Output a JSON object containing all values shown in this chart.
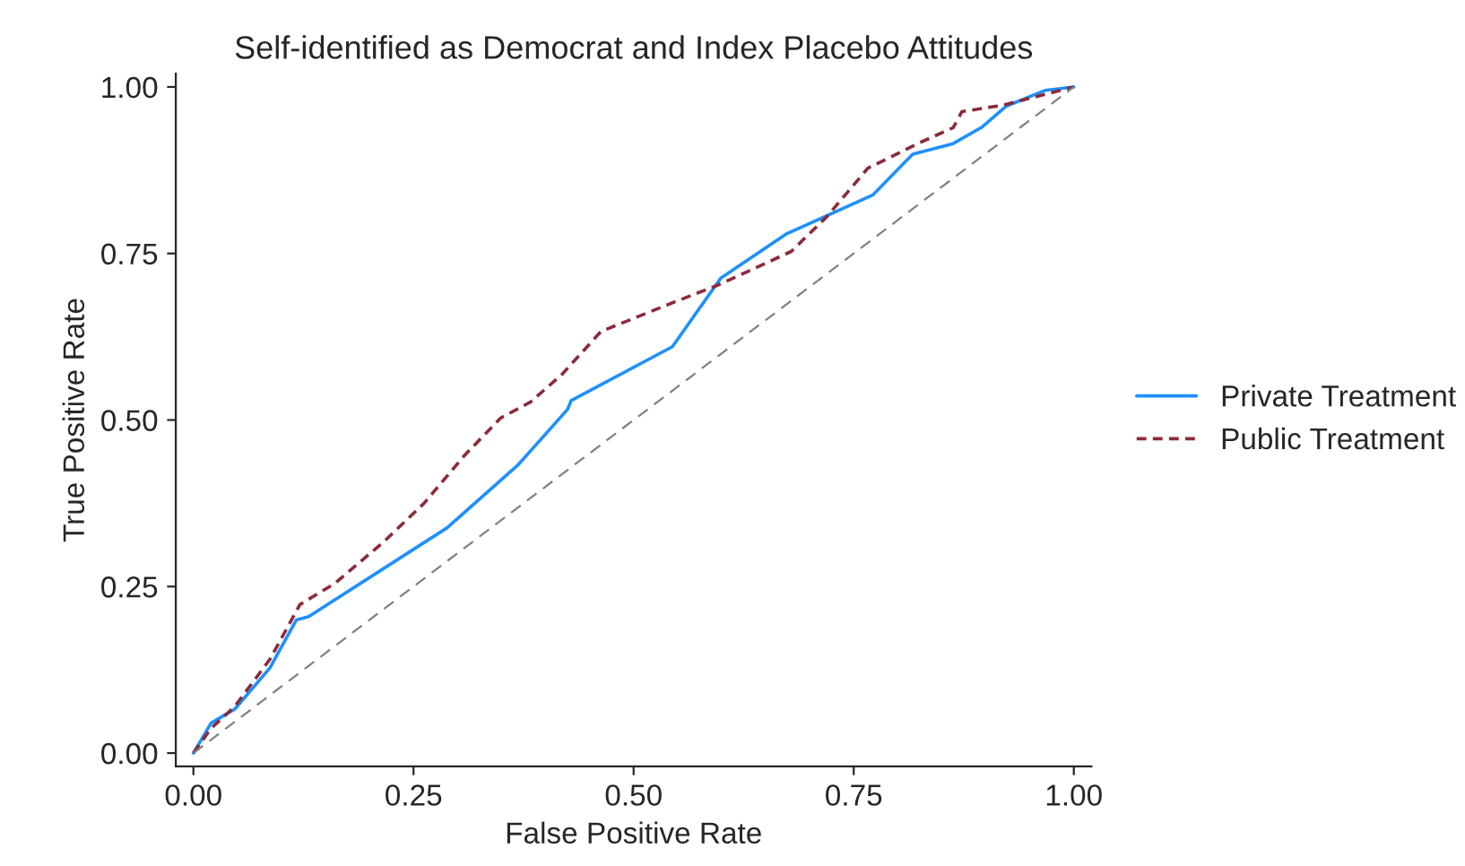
{
  "chart_data": {
    "type": "line",
    "title": "Self-identified as Democrat and Index Placebo Attitudes",
    "xlabel": "False Positive Rate",
    "ylabel": "True Positive Rate",
    "xlim": [
      -0.02,
      1.02
    ],
    "ylim": [
      -0.02,
      1.02
    ],
    "xticks": [
      {
        "value": 0,
        "label": "0.00"
      },
      {
        "value": 0.25,
        "label": "0.25"
      },
      {
        "value": 0.5,
        "label": "0.50"
      },
      {
        "value": 0.75,
        "label": "0.75"
      },
      {
        "value": 1,
        "label": "1.00"
      }
    ],
    "yticks": [
      {
        "value": 0,
        "label": "0.00"
      },
      {
        "value": 0.25,
        "label": "0.25"
      },
      {
        "value": 0.5,
        "label": "0.50"
      },
      {
        "value": 0.75,
        "label": "0.75"
      },
      {
        "value": 1,
        "label": "1.00"
      }
    ],
    "grid": false,
    "legend": "right",
    "marker": "none",
    "series": [
      {
        "name": "Private Treatment",
        "color": "#1e90ff",
        "line_style": "solid",
        "x": [
          0,
          0.02,
          0.047,
          0.087,
          0.117,
          0.131,
          0.288,
          0.369,
          0.425,
          0.429,
          0.544,
          0.599,
          0.673,
          0.772,
          0.817,
          0.863,
          0.895,
          0.923,
          0.968,
          1.0
        ],
        "values": [
          0,
          0.045,
          0.066,
          0.128,
          0.2,
          0.205,
          0.338,
          0.433,
          0.516,
          0.529,
          0.61,
          0.713,
          0.779,
          0.838,
          0.899,
          0.915,
          0.939,
          0.971,
          0.995,
          1.0
        ]
      },
      {
        "name": "Public Treatment",
        "color": "#8b2a3a",
        "line_style": "dashed",
        "x": [
          0,
          0.02,
          0.047,
          0.087,
          0.121,
          0.161,
          0.216,
          0.262,
          0.308,
          0.349,
          0.383,
          0.419,
          0.463,
          0.548,
          0.595,
          0.679,
          0.72,
          0.766,
          0.823,
          0.863,
          0.873,
          0.921,
          1.0
        ],
        "values": [
          0,
          0.037,
          0.07,
          0.141,
          0.223,
          0.255,
          0.317,
          0.375,
          0.447,
          0.503,
          0.527,
          0.569,
          0.633,
          0.678,
          0.702,
          0.753,
          0.806,
          0.878,
          0.915,
          0.939,
          0.963,
          0.973,
          1.0
        ]
      },
      {
        "color": "#808080",
        "line_style": "dashed",
        "x": [
          0,
          1
        ],
        "values": [
          0,
          1
        ]
      }
    ]
  }
}
